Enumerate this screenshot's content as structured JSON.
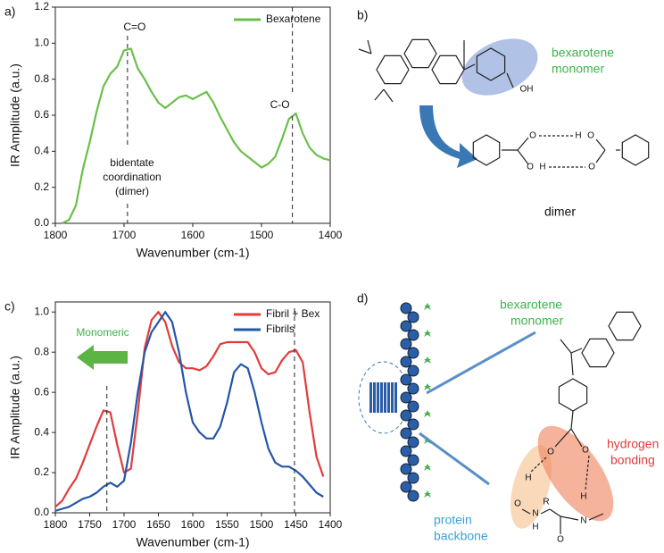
{
  "chart_data": [
    {
      "type": "line",
      "label": "a)",
      "x_label": "Wavenumber (cm-1)",
      "y_label": "IR Amplitude (a.u.)",
      "xlim": [
        1800,
        1400
      ],
      "xticks": [
        1800,
        1700,
        1600,
        1500,
        1400
      ],
      "ylim": [
        0,
        1.2
      ],
      "yticks": [
        {
          "value": 0,
          "label": "0.0"
        },
        0.2,
        0.4,
        0.6,
        0.8,
        {
          "value": 1,
          "label": "1.0"
        },
        1.2
      ],
      "legend": "upper right",
      "x": [
        1790,
        1780,
        1770,
        1760,
        1750,
        1740,
        1730,
        1720,
        1710,
        1700,
        1690,
        1680,
        1670,
        1660,
        1650,
        1640,
        1630,
        1620,
        1610,
        1600,
        1590,
        1580,
        1570,
        1560,
        1550,
        1540,
        1530,
        1520,
        1510,
        1500,
        1490,
        1480,
        1470,
        1460,
        1450,
        1440,
        1430,
        1420,
        1410,
        1400
      ],
      "series": [
        {
          "name": "Bexarotene",
          "color": "#6cbf4a",
          "values": [
            0,
            0.02,
            0.1,
            0.3,
            0.45,
            0.62,
            0.76,
            0.83,
            0.87,
            0.96,
            0.97,
            0.86,
            0.8,
            0.73,
            0.67,
            0.64,
            0.67,
            0.7,
            0.71,
            0.69,
            0.71,
            0.73,
            0.67,
            0.59,
            0.52,
            0.45,
            0.4,
            0.37,
            0.34,
            0.31,
            0.33,
            0.37,
            0.47,
            0.58,
            0.61,
            0.5,
            0.42,
            0.38,
            0.36,
            0.35
          ]
        }
      ],
      "vlines": [
        1695,
        1455
      ],
      "annotations": [
        "C=O",
        "C-O"
      ],
      "note": [
        "bidentate",
        "coordination",
        "(dimer)"
      ]
    },
    {
      "type": "line",
      "label": "c)",
      "x_label": "Wavenumber (cm-1)",
      "y_label": "IR Amplitude (a.u.)",
      "xlim": [
        1800,
        1400
      ],
      "xticks": [
        1800,
        1750,
        1700,
        1650,
        1600,
        1550,
        1500,
        1450,
        1400
      ],
      "ylim": [
        0,
        1.05
      ],
      "yticks": [
        {
          "value": 0,
          "label": "0.0"
        },
        0.2,
        0.4,
        0.6,
        0.8,
        {
          "value": 1,
          "label": "1.0"
        }
      ],
      "legend": "upper right",
      "x": [
        1800,
        1790,
        1780,
        1770,
        1760,
        1750,
        1740,
        1730,
        1720,
        1710,
        1700,
        1690,
        1680,
        1670,
        1660,
        1650,
        1640,
        1630,
        1620,
        1610,
        1600,
        1590,
        1580,
        1570,
        1560,
        1550,
        1540,
        1530,
        1520,
        1510,
        1500,
        1490,
        1480,
        1470,
        1460,
        1450,
        1440,
        1430,
        1420,
        1410
      ],
      "series": [
        {
          "name": "Fibril + Bex",
          "color": "#e03c3c",
          "values": [
            0.03,
            0.06,
            0.12,
            0.17,
            0.25,
            0.34,
            0.43,
            0.51,
            0.5,
            0.34,
            0.2,
            0.22,
            0.5,
            0.82,
            0.96,
            1.0,
            0.95,
            0.83,
            0.75,
            0.72,
            0.72,
            0.71,
            0.73,
            0.78,
            0.84,
            0.85,
            0.85,
            0.85,
            0.85,
            0.8,
            0.72,
            0.69,
            0.7,
            0.76,
            0.8,
            0.81,
            0.75,
            0.5,
            0.28,
            0.18
          ]
        },
        {
          "name": "Fibrils",
          "color": "#2456a6",
          "values": [
            0.01,
            0.02,
            0.03,
            0.05,
            0.07,
            0.08,
            0.1,
            0.13,
            0.15,
            0.13,
            0.16,
            0.35,
            0.6,
            0.8,
            0.9,
            0.95,
            1.0,
            0.95,
            0.8,
            0.6,
            0.45,
            0.4,
            0.37,
            0.37,
            0.43,
            0.55,
            0.7,
            0.74,
            0.72,
            0.6,
            0.45,
            0.32,
            0.25,
            0.23,
            0.23,
            0.21,
            0.18,
            0.14,
            0.1,
            0.08
          ]
        }
      ],
      "vlines": [
        1725,
        1452
      ],
      "annotations": [
        "Monomeric"
      ]
    }
  ],
  "diagrams": {
    "panel_b": {
      "label": "b)",
      "monomer_label": [
        "bexarotene",
        "monomer"
      ],
      "dimer_label": "dimer",
      "atoms": [
        "OH",
        "O",
        "H",
        "O",
        "O",
        "H",
        "O"
      ]
    },
    "panel_d": {
      "label": "d)",
      "monomer_label": [
        "bexarotene",
        "monomer"
      ],
      "hbond_label": [
        "hydrogen",
        "bonding"
      ],
      "backbone_label": [
        "protein",
        "backbone"
      ],
      "atoms": [
        "O",
        "O",
        "H",
        "O",
        "N",
        "H",
        "R",
        "H",
        "N",
        "O"
      ]
    }
  }
}
